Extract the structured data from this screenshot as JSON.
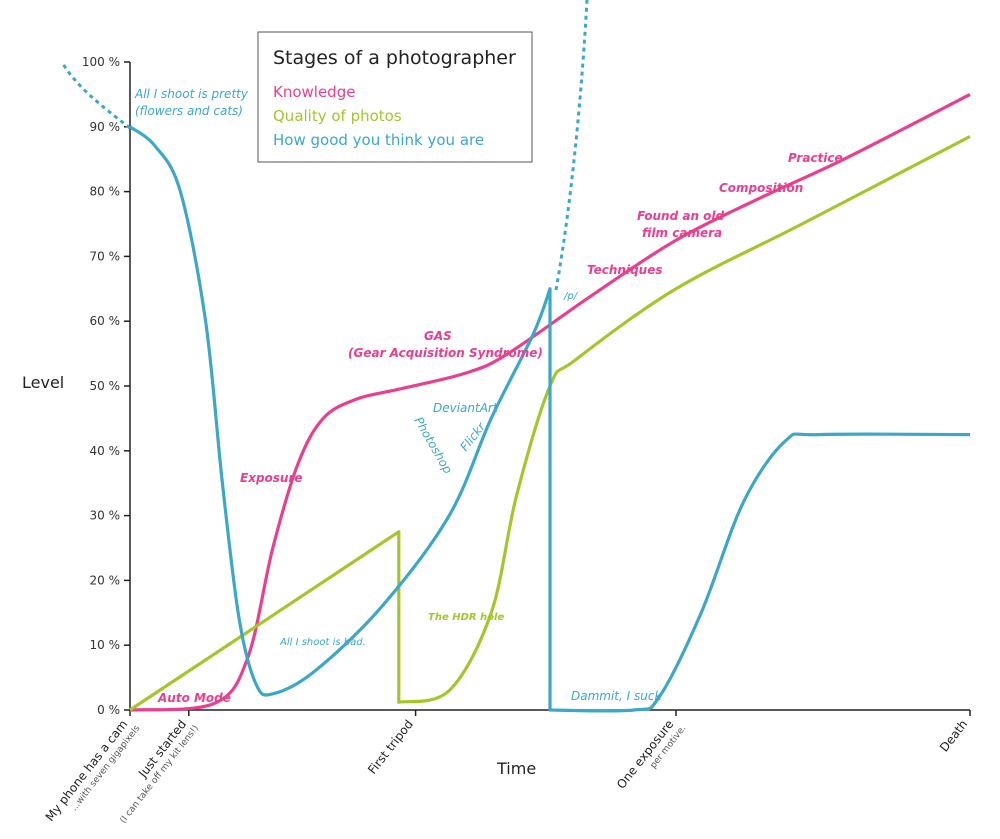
{
  "chart_data": {
    "type": "line",
    "title": "Stages of a photographer",
    "xlabel": "Time",
    "ylabel": "Level",
    "ylim": [
      0,
      100
    ],
    "xlim": [
      0,
      100
    ],
    "yticks": [
      "0 %",
      "10 %",
      "20 %",
      "30 %",
      "40 %",
      "50 %",
      "60 %",
      "70 %",
      "80 %",
      "90 %",
      "100 %"
    ],
    "x_categories": [
      {
        "x": 0,
        "label": "My phone has a cam",
        "sublabel": "...with seven gigapixels"
      },
      {
        "x": 7,
        "label": "Just started",
        "sublabel": "(I can take off my kit lens!)"
      },
      {
        "x": 34,
        "label": "First tripod",
        "sublabel": ""
      },
      {
        "x": 65,
        "label": "One exposure",
        "sublabel": "per motive."
      },
      {
        "x": 100,
        "label": "Death",
        "sublabel": ""
      }
    ],
    "legend": {
      "placement": "top-center"
    },
    "series": [
      {
        "name": "Knowledge",
        "color": "#e8408f",
        "points": [
          [
            0,
            0
          ],
          [
            10,
            1
          ],
          [
            14,
            8
          ],
          [
            17,
            25
          ],
          [
            20,
            38
          ],
          [
            23,
            45
          ],
          [
            27,
            48
          ],
          [
            32,
            49.5
          ],
          [
            40,
            52
          ],
          [
            45,
            55
          ],
          [
            55,
            64
          ],
          [
            65,
            72.5
          ],
          [
            75,
            79
          ],
          [
            85,
            85
          ],
          [
            100,
            95
          ]
        ]
      },
      {
        "name": "Quality of photos",
        "color": "#a4c62b",
        "points": [
          [
            0,
            0
          ],
          [
            32,
            27.5
          ],
          [
            32,
            1.2
          ],
          [
            38,
            3
          ],
          [
            43,
            15
          ],
          [
            46,
            33
          ],
          [
            50,
            50
          ],
          [
            53,
            54
          ],
          [
            65,
            65
          ],
          [
            80,
            75
          ],
          [
            100,
            88.5
          ]
        ]
      },
      {
        "name": "How good you think you are",
        "color": "#3da7c8",
        "points": [
          [
            0,
            90
          ],
          [
            3,
            87
          ],
          [
            6,
            80
          ],
          [
            9,
            60
          ],
          [
            11,
            35
          ],
          [
            13,
            14
          ],
          [
            15,
            4
          ],
          [
            17,
            2.5
          ],
          [
            22,
            6
          ],
          [
            30,
            16
          ],
          [
            38,
            30
          ],
          [
            43,
            45
          ],
          [
            48,
            58
          ],
          [
            50,
            65
          ],
          [
            50,
            0
          ],
          [
            60,
            0
          ],
          [
            63,
            2
          ],
          [
            68,
            15
          ],
          [
            73,
            32
          ],
          [
            78,
            41.5
          ],
          [
            82,
            42.5
          ],
          [
            100,
            42.5
          ]
        ]
      }
    ],
    "annotations": {
      "knowledge": [
        "Auto Mode",
        "Exposure",
        "GAS",
        "(Gear Acquisition Syndrome)",
        "Techniques",
        "Found an old",
        "film camera",
        "Composition",
        "Practice"
      ],
      "self": [
        "All I shoot is pretty",
        "(flowers and cats)",
        "All I shoot is bad.",
        "Photoshop",
        "DeviantArt",
        "Flickr",
        "/p/",
        "Dammit, I suck"
      ],
      "quality": [
        "The HDR hole"
      ]
    }
  }
}
